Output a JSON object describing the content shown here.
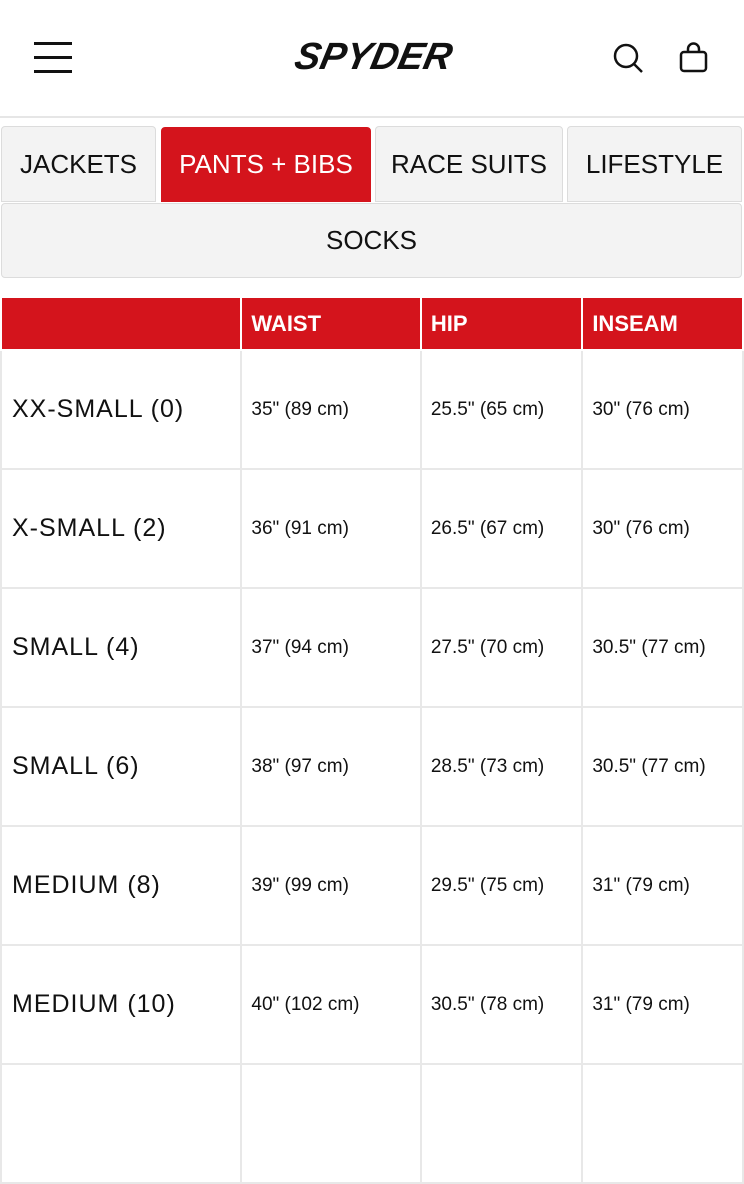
{
  "header": {
    "logo": "SPYDER",
    "icons": [
      "menu-icon",
      "search-icon",
      "bag-icon"
    ]
  },
  "tabs": [
    {
      "label": "JACKETS",
      "active": false
    },
    {
      "label": "PANTS + BIBS",
      "active": true
    },
    {
      "label": "RACE SUITS",
      "active": false
    },
    {
      "label": "LIFESTYLE",
      "active": false
    },
    {
      "label": "SOCKS",
      "active": false
    }
  ],
  "colors": {
    "accent": "#d4141c"
  },
  "table": {
    "headers": [
      "",
      "WAIST",
      "HIP",
      "INSEAM"
    ],
    "rows": [
      [
        "XX-SMALL (0)",
        "35\" (89 cm)",
        "25.5\" (65 cm)",
        "30\" (76 cm)"
      ],
      [
        "X-SMALL (2)",
        "36\" (91 cm)",
        "26.5\" (67 cm)",
        "30\" (76 cm)"
      ],
      [
        "SMALL (4)",
        "37\" (94 cm)",
        "27.5\" (70 cm)",
        "30.5\" (77 cm)"
      ],
      [
        "SMALL (6)",
        "38\" (97 cm)",
        "28.5\" (73 cm)",
        "30.5\" (77 cm)"
      ],
      [
        "MEDIUM (8)",
        "39\" (99 cm)",
        "29.5\" (75 cm)",
        "31\" (79 cm)"
      ],
      [
        "MEDIUM (10)",
        "40\" (102 cm)",
        "30.5\" (78 cm)",
        "31\" (79 cm)"
      ]
    ]
  }
}
